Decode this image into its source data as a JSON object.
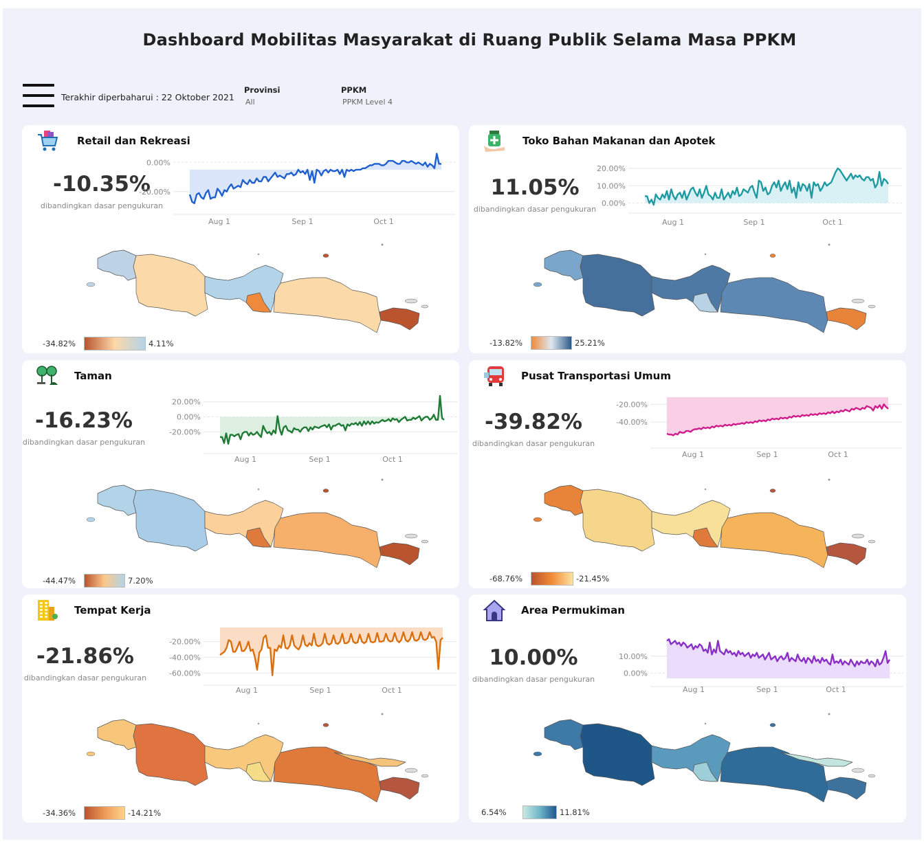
{
  "title": "Dashboard Mobilitas Masyarakat di Ruang Publik Selama Masa PPKM",
  "updated_label": "Terakhir diperbaharui : 22 Oktober 2021",
  "filters": [
    {
      "label": "Provinsi",
      "value": "All"
    },
    {
      "label": "PPKM",
      "value": "PPKM Level 4"
    }
  ],
  "x_ticks": [
    "Aug 1",
    "Sep 1",
    "Oct 1"
  ],
  "sub_label": "dibandingkan dasar pengukuran",
  "cards": [
    {
      "title": "Retail dan Rekreasi",
      "icon": "shopping-cart-icon",
      "value": "-10.35%",
      "color": "#1f5fcf",
      "fill": "#dbe6fb",
      "y_ticks": [
        {
          "label": "0.00%",
          "v": 0
        },
        {
          "label": "-20.00%",
          "v": -20
        }
      ],
      "ylim": [
        -30,
        2
      ],
      "base": -5,
      "series": [
        -22,
        -27,
        -28,
        -22,
        -21,
        -24,
        -25,
        -21,
        -19,
        -25,
        -24,
        -24,
        -18,
        -20,
        -23,
        -19,
        -20,
        -17,
        -15,
        -18,
        -17,
        -16,
        -17,
        -12,
        -14,
        -15,
        -12,
        -14,
        -14,
        -11,
        -13,
        -13,
        -10,
        -10,
        -13,
        -11,
        -9,
        -7,
        -10,
        -9,
        -10,
        -11,
        -8,
        -8,
        -7,
        -9,
        -8,
        -5,
        -7,
        -6,
        -8,
        -5,
        -12,
        -6,
        -14,
        -5,
        -6,
        -9,
        -6,
        -5,
        -7,
        -5,
        -6,
        -6,
        -5,
        -8,
        -5,
        -10,
        -5,
        -6,
        -5,
        -6,
        -5,
        -5,
        -5,
        -4,
        -4,
        -3,
        -2,
        -2,
        -1,
        -1,
        -1,
        -2,
        -2,
        -1,
        1,
        1,
        1,
        0,
        -1,
        -1,
        1,
        1,
        0,
        0,
        1,
        0,
        -1,
        0,
        -1,
        -2,
        0,
        -3,
        -1,
        -2,
        -4,
        6,
        -1,
        -1
      ],
      "map": [
        "#bfd3e6",
        "#fcd9a8",
        "#b3d3e8",
        "#ef8a3c",
        "#fcd9a8",
        "#b9542e"
      ],
      "legend": {
        "min": "-34.82%",
        "max": "4.11%",
        "from": "#b9542e",
        "mid": "#fcd9a8",
        "to": "#b3d3e8"
      }
    },
    {
      "title": "Toko Bahan Makanan dan Apotek",
      "icon": "pharmacy-icon",
      "value": "11.05%",
      "color": "#1e9aa3",
      "fill": "#d9f1f4",
      "y_ticks": [
        {
          "label": "20.00%",
          "v": 20
        },
        {
          "label": "10.00%",
          "v": 10
        },
        {
          "label": "0.00%",
          "v": 0
        }
      ],
      "ylim": [
        -1,
        22
      ],
      "base": 0,
      "series": [
        4,
        4,
        0,
        2,
        -1,
        5,
        3,
        2,
        5,
        3,
        7,
        2,
        8,
        4,
        2,
        5,
        6,
        3,
        7,
        2,
        5,
        8,
        9,
        6,
        4,
        8,
        3,
        6,
        10,
        5,
        4,
        2,
        6,
        3,
        3,
        8,
        2,
        4,
        6,
        3,
        7,
        5,
        9,
        4,
        5,
        8,
        7,
        6,
        9,
        10,
        6,
        3,
        13,
        12,
        7,
        9,
        5,
        6,
        10,
        12,
        9,
        13,
        7,
        10,
        12,
        8,
        13,
        6,
        9,
        3,
        12,
        7,
        11,
        10,
        7,
        11,
        3,
        12,
        10,
        11,
        7,
        9,
        12,
        10,
        11,
        12,
        15,
        18,
        20,
        19,
        17,
        15,
        13,
        15,
        17,
        14,
        16,
        15,
        16,
        14,
        13,
        15,
        15,
        13,
        14,
        9,
        11,
        18,
        10,
        14,
        13,
        11
      ],
      "map": [
        "#7ba6cc",
        "#46709c",
        "#4f79a5",
        "#b8d2e6",
        "#5d88b4",
        "#e8833a"
      ],
      "legend": {
        "min": "-13.82%",
        "max": "25.21%",
        "from": "#ef8a3c",
        "mid": "#dfe8f0",
        "to": "#2d5a8a"
      }
    },
    {
      "title": "Taman",
      "icon": "park-trees-icon",
      "value": "-16.23%",
      "color": "#1e7a34",
      "fill": "#dcefe0",
      "y_ticks": [
        {
          "label": "20.00%",
          "v": 20
        },
        {
          "label": "0.00%",
          "v": 0
        },
        {
          "label": "-20.00%",
          "v": -20
        }
      ],
      "ylim": [
        -38,
        28
      ],
      "base": 0,
      "series": [
        -27,
        -27,
        -35,
        -22,
        -36,
        -24,
        -24,
        -26,
        -24,
        -23,
        -30,
        -22,
        -20,
        -20,
        -25,
        -21,
        -24,
        -23,
        -20,
        -24,
        -27,
        -12,
        -18,
        -22,
        -20,
        -24,
        -18,
        -22,
        1,
        -16,
        -24,
        -14,
        -12,
        -18,
        -19,
        -21,
        -15,
        -17,
        -17,
        -20,
        -16,
        -14,
        -14,
        -19,
        -14,
        -17,
        -13,
        -14,
        -15,
        -13,
        -12,
        -11,
        -14,
        -10,
        -17,
        -12,
        -12,
        -10,
        -9,
        -12,
        -11,
        -18,
        -10,
        -12,
        -9,
        -10,
        -8,
        -11,
        -7,
        -12,
        -6,
        -10,
        -6,
        -10,
        -6,
        -9,
        -7,
        -8,
        -6,
        -4,
        -6,
        -5,
        -3,
        -6,
        -2,
        -4,
        -3,
        -7,
        -4,
        -2,
        0,
        -5,
        -4,
        -4,
        -1,
        -3,
        -1,
        1,
        -5,
        -2,
        0,
        0,
        -4,
        -2,
        3,
        -4,
        -4,
        28,
        -2,
        -4
      ],
      "map": [
        "#b3d3e8",
        "#a9cde6",
        "#fcd09a",
        "#dd7a3c",
        "#f6b06c",
        "#b9542e"
      ],
      "legend": {
        "min": "-44.47%",
        "max": "7.20%",
        "from": "#b9542e",
        "mid": "#fcc88a",
        "to": "#b3d3e8"
      }
    },
    {
      "title": "Pusat Transportasi Umum",
      "icon": "bus-icon",
      "value": "-39.82%",
      "color": "#cf1b8a",
      "fill": "#f9cfe6",
      "y_ticks": [
        {
          "label": "-20.00%",
          "v": -20
        },
        {
          "label": "-40.00%",
          "v": -40
        }
      ],
      "ylim": [
        -60,
        -12
      ],
      "base": -12,
      "series": [
        -53,
        -54,
        -54,
        -55,
        -53,
        -54,
        -51,
        -52,
        -52,
        -50,
        -50,
        -51,
        -49,
        -48,
        -48,
        -47,
        -48,
        -46,
        -47,
        -46,
        -47,
        -45,
        -46,
        -44,
        -45,
        -44,
        -45,
        -43,
        -44,
        -43,
        -44,
        -42,
        -43,
        -42,
        -42,
        -41,
        -42,
        -40,
        -41,
        -40,
        -41,
        -39,
        -40,
        -38,
        -39,
        -38,
        -39,
        -37,
        -38,
        -36,
        -37,
        -36,
        -37,
        -35,
        -36,
        -35,
        -36,
        -34,
        -35,
        -33,
        -34,
        -33,
        -34,
        -32,
        -33,
        -32,
        -33,
        -31,
        -32,
        -31,
        -32,
        -30,
        -31,
        -30,
        -31,
        -29,
        -30,
        -28,
        -30,
        -28,
        -29,
        -27,
        -28,
        -26,
        -27,
        -28,
        -25,
        -26,
        -24,
        -25,
        -26,
        -24,
        -25,
        -22,
        -23,
        -24,
        -27,
        -22,
        -24,
        -21,
        -25,
        -20,
        -23,
        -25
      ],
      "map": [
        "#e8833a",
        "#f6d68a",
        "#f9e09a",
        "#e07a3a",
        "#f5b35a",
        "#b5573e"
      ],
      "legend": {
        "min": "-68.76%",
        "max": "-21.45%",
        "from": "#b9542e",
        "mid": "#f28c38",
        "to": "#fce1a0"
      }
    },
    {
      "title": "Tempat Kerja",
      "icon": "office-building-icon",
      "value": "-21.86%",
      "color": "#d9700f",
      "fill": "#fbdcc4",
      "y_ticks": [
        {
          "label": "-20.00%",
          "v": -20
        },
        {
          "label": "-40.00%",
          "v": -40
        },
        {
          "label": "-60.00%",
          "v": -60
        }
      ],
      "ylim": [
        -65,
        -2
      ],
      "base": -2,
      "series": [
        -37,
        -35,
        -33,
        -28,
        -18,
        -20,
        -33,
        -33,
        -27,
        -20,
        -32,
        -32,
        -28,
        -20,
        -32,
        -30,
        -40,
        -56,
        -34,
        -30,
        -15,
        -12,
        -28,
        -28,
        -63,
        -30,
        -32,
        -25,
        -28,
        -12,
        -28,
        -29,
        -25,
        -12,
        -25,
        -28,
        -30,
        -25,
        -12,
        -24,
        -26,
        -22,
        -25,
        -10,
        -24,
        -26,
        -25,
        -22,
        -10,
        -22,
        -24,
        -22,
        -12,
        -22,
        -23,
        -20,
        -10,
        -22,
        -22,
        -20,
        -10,
        -20,
        -22,
        -21,
        -11,
        -20,
        -22,
        -20,
        -10,
        -20,
        -21,
        -20,
        -9,
        -20,
        -20,
        -19,
        -10,
        -18,
        -20,
        -19,
        -9,
        -18,
        -21,
        -18,
        -8,
        -18,
        -20,
        -17,
        -8,
        -18,
        -19,
        -17,
        -8,
        -17,
        -18,
        -16,
        -8,
        -15,
        -14,
        -20,
        -55,
        -18,
        -15
      ],
      "map": [
        "#f7c67b",
        "#e07440",
        "#f8c97c",
        "#f5dc86",
        "#e07a3a",
        "#f5c27a",
        "#b5573e"
      ],
      "legend": {
        "min": "-34.36%",
        "max": "-14.21%",
        "from": "#b9542e",
        "mid": "#ee9a58",
        "to": "#fbd58a"
      }
    },
    {
      "title": "Area Permukiman",
      "icon": "house-icon",
      "value": "10.00%",
      "color": "#8a2fc6",
      "fill": "#eadcfa",
      "y_ticks": [
        {
          "label": "10.00%",
          "v": 10
        },
        {
          "label": "0.00%",
          "v": 0
        }
      ],
      "ylim": [
        -3,
        22
      ],
      "base": -3,
      "series": [
        19,
        20,
        17,
        18,
        19,
        17,
        18,
        16,
        18,
        17,
        15,
        16,
        17,
        14,
        16,
        15,
        17,
        16,
        13,
        14,
        12,
        18,
        11,
        14,
        12,
        19,
        13,
        12,
        11,
        14,
        12,
        13,
        11,
        12,
        10,
        13,
        11,
        12,
        10,
        11,
        12,
        9,
        11,
        10,
        12,
        9,
        10,
        11,
        8,
        10,
        12,
        8,
        9,
        10,
        7,
        9,
        10,
        8,
        9,
        12,
        7,
        9,
        8,
        7,
        11,
        8,
        7,
        9,
        6,
        9,
        8,
        6,
        10,
        7,
        8,
        6,
        9,
        7,
        8,
        6,
        5,
        11,
        6,
        7,
        6,
        8,
        5,
        7,
        6,
        5,
        8,
        6,
        4,
        7,
        5,
        7,
        6,
        6,
        8,
        5,
        7,
        6,
        4,
        8,
        5,
        6,
        9,
        13,
        6,
        8
      ],
      "map": [
        "#3e7aa8",
        "#1e5688",
        "#5a9bbd",
        "#9ecfd8",
        "#2f6c99",
        "#c2e5e0",
        "#3c729c"
      ],
      "legend": {
        "min": "6.54%",
        "max": "11.81%",
        "from": "#c9eae3",
        "mid": "#6fb6c9",
        "to": "#21588f"
      }
    }
  ]
}
